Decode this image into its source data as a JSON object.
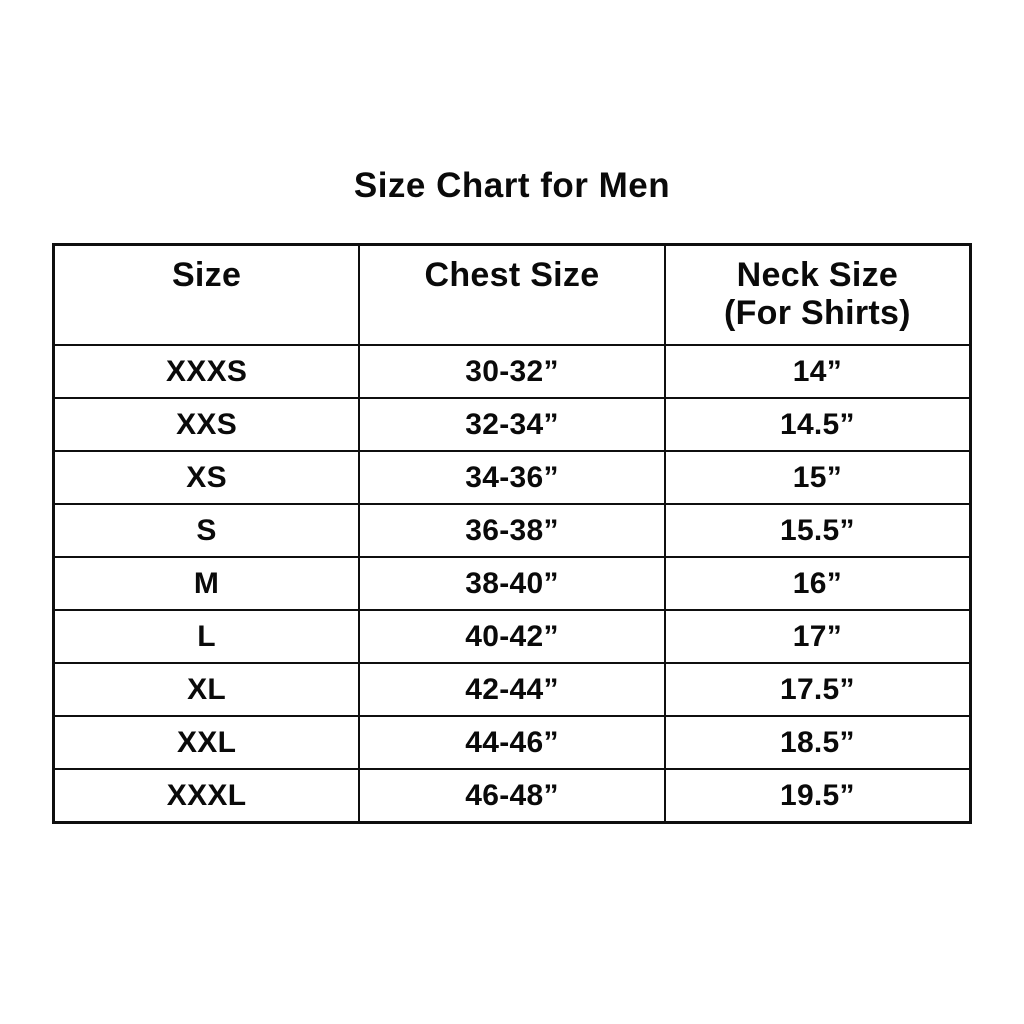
{
  "colors": {
    "background": "#ffffff",
    "text": "#0a0a0a",
    "border": "#0f0f0f"
  },
  "chart_data": {
    "type": "table",
    "title": "Size Chart for Men",
    "columns": [
      {
        "key": "size",
        "label": "Size"
      },
      {
        "key": "chest-size",
        "label": "Chest Size"
      },
      {
        "key": "neck-size",
        "label": "Neck Size\n(For Shirts)"
      }
    ],
    "rows": [
      [
        "XXXS",
        "30-32”",
        "14”"
      ],
      [
        "XXS",
        "32-34”",
        "14.5”"
      ],
      [
        "XS",
        "34-36”",
        "15”"
      ],
      [
        "S",
        "36-38”",
        "15.5”"
      ],
      [
        "M",
        "38-40”",
        "16”"
      ],
      [
        "L",
        "40-42”",
        "17”"
      ],
      [
        "XL",
        "42-44”",
        "17.5”"
      ],
      [
        "XXL",
        "44-46”",
        "18.5”"
      ],
      [
        "XXXL",
        "46-48”",
        "19.5”"
      ]
    ]
  }
}
